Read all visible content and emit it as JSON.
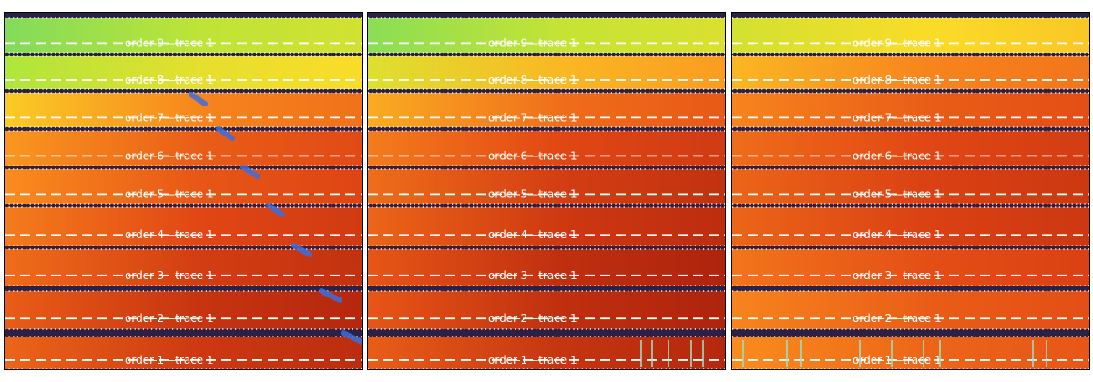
{
  "panels": [
    {
      "id": "panel-1",
      "orders": [
        {
          "label": "order-9—trace 1",
          "level": 0.3
        },
        {
          "label": "order-8—trace 1",
          "level": 0.4
        },
        {
          "label": "order-7—trace 1",
          "level": 0.62
        },
        {
          "label": "order-6—trace 1",
          "level": 0.72
        },
        {
          "label": "order-5—trace 1",
          "level": 0.74
        },
        {
          "label": "order-4—trace 1",
          "level": 0.78
        },
        {
          "label": "order-3—trace 1",
          "level": 0.82
        },
        {
          "label": "order-2—trace 1",
          "level": 0.86
        },
        {
          "label": "order-1—trace 1",
          "level": 0.84
        }
      ]
    },
    {
      "id": "panel-2",
      "orders": [
        {
          "label": "order-9—trace 1",
          "level": 0.32
        },
        {
          "label": "order-8—trace 1",
          "level": 0.52
        },
        {
          "label": "order-7—trace 1",
          "level": 0.68
        },
        {
          "label": "order-6—trace 1",
          "level": 0.78
        },
        {
          "label": "order-5—trace 1",
          "level": 0.82
        },
        {
          "label": "order-4—trace 1",
          "level": 0.84
        },
        {
          "label": "order-3—trace 1",
          "level": 0.88
        },
        {
          "label": "order-2—trace 1",
          "level": 0.88
        },
        {
          "label": "order-1—trace 1",
          "level": 0.86
        }
      ]
    },
    {
      "id": "panel-3",
      "orders": [
        {
          "label": "order-9—trace 1",
          "level": 0.45
        },
        {
          "label": "order-8—trace 1",
          "level": 0.62
        },
        {
          "label": "order-7—trace 1",
          "level": 0.72
        },
        {
          "label": "order-6—trace 1",
          "level": 0.78
        },
        {
          "label": "order-5—trace 1",
          "level": 0.8
        },
        {
          "label": "order-4—trace 1",
          "level": 0.8
        },
        {
          "label": "order-3—trace 1",
          "level": 0.76
        },
        {
          "label": "order-2—trace 1",
          "level": 0.72
        },
        {
          "label": "order-1—trace 1",
          "level": 0.7
        }
      ]
    }
  ],
  "colors": {
    "gap": "#2b2146",
    "trace_line": "#ffffff",
    "edge_dots": "#ffffff",
    "artifact": "#3a6fe0",
    "frame": "#000000"
  }
}
